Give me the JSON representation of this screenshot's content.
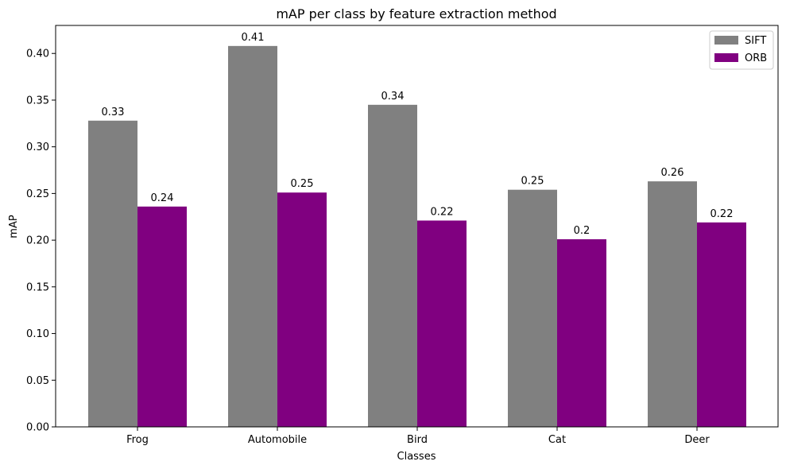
{
  "chart_data": {
    "type": "bar",
    "title": "mAP per class by feature extraction method",
    "xlabel": "Classes",
    "ylabel": "mAP",
    "categories": [
      "Frog",
      "Automobile",
      "Bird",
      "Cat",
      "Deer"
    ],
    "series": [
      {
        "name": "SIFT",
        "color": "#808080",
        "values": [
          0.328,
          0.408,
          0.345,
          0.254,
          0.263
        ],
        "labels": [
          "0.33",
          "0.41",
          "0.34",
          "0.25",
          "0.26"
        ]
      },
      {
        "name": "ORB",
        "color": "#800080",
        "values": [
          0.236,
          0.251,
          0.221,
          0.201,
          0.219
        ],
        "labels": [
          "0.24",
          "0.25",
          "0.22",
          "0.2",
          "0.22"
        ]
      }
    ],
    "ylim": [
      0,
      0.43
    ],
    "yticks": [
      0.0,
      0.05,
      0.1,
      0.15,
      0.2,
      0.25,
      0.3,
      0.35,
      0.4
    ],
    "ytick_labels": [
      "0.00",
      "0.05",
      "0.10",
      "0.15",
      "0.20",
      "0.25",
      "0.30",
      "0.35",
      "0.40"
    ],
    "legend_position": "top-right",
    "grid": false
  }
}
